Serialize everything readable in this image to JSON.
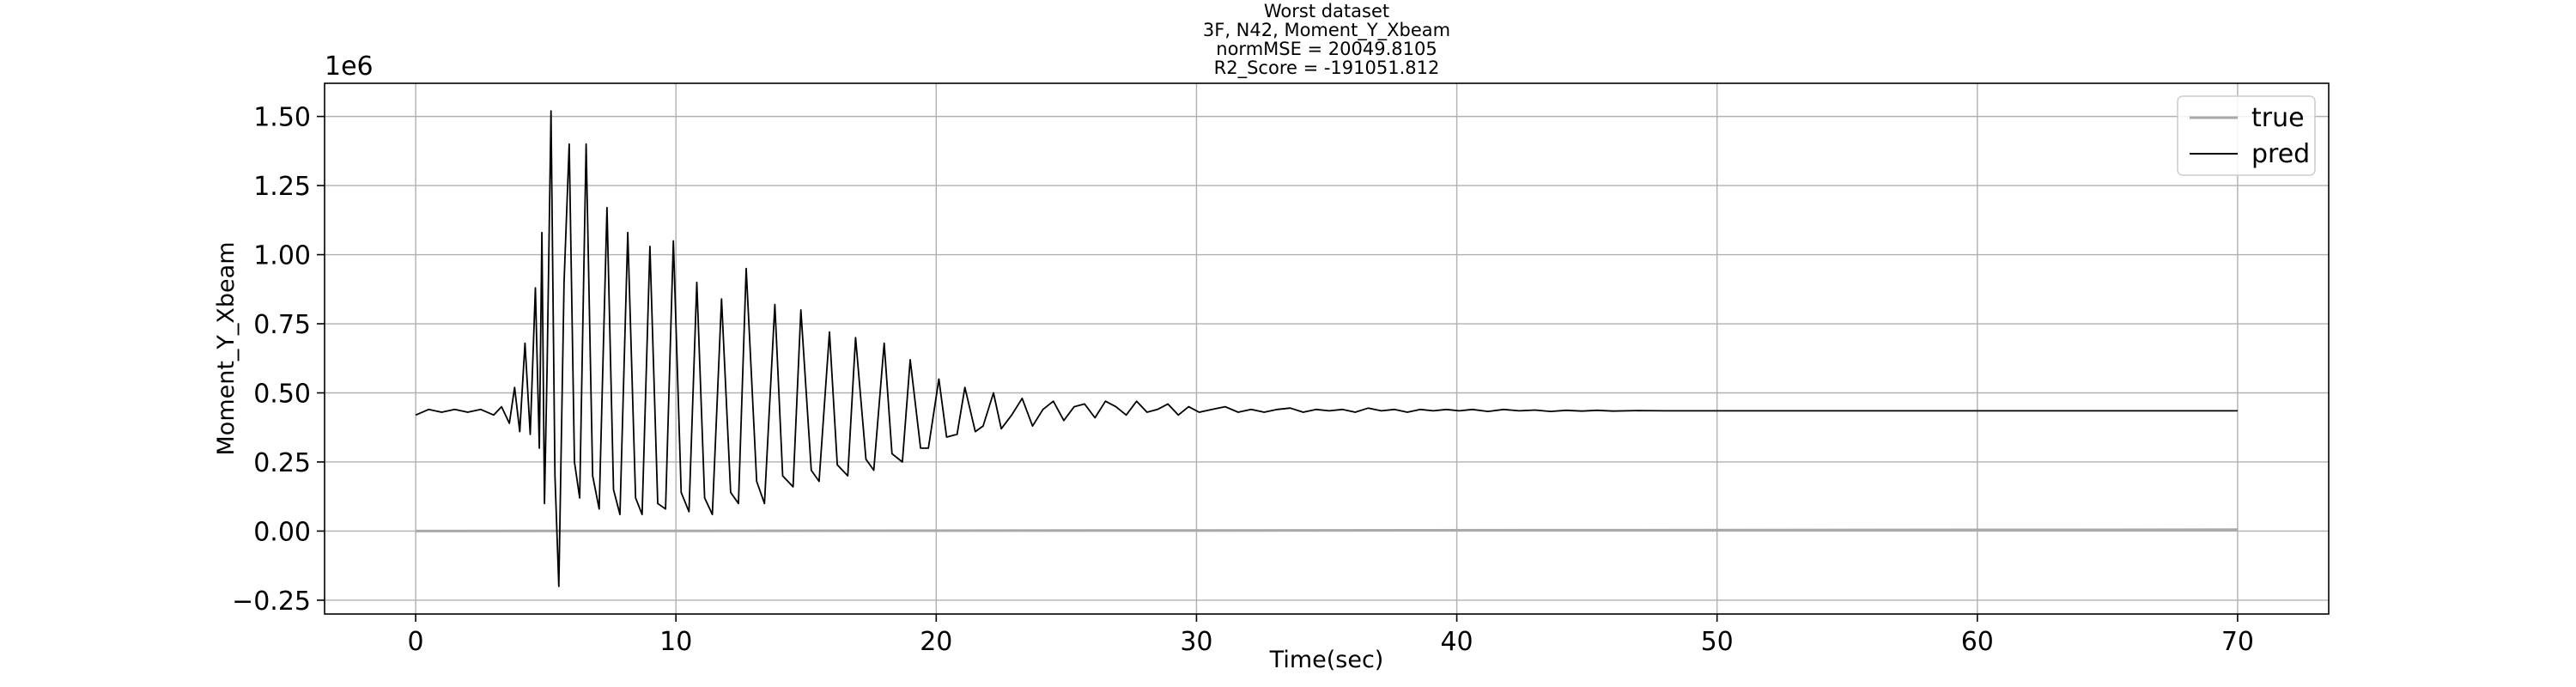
{
  "chart_data": {
    "type": "line",
    "title_lines": [
      "Worst dataset",
      "3F, N42, Moment_Y_Xbeam",
      "normMSE = 20049.8105",
      "R2_Score = -191051.812"
    ],
    "xlabel": "Time(sec)",
    "ylabel": "Moment_Y_Xbeam",
    "y_scale_label": "1e6",
    "xlim": [
      -3.5,
      73.5
    ],
    "ylim": [
      -0.3,
      1.62
    ],
    "x_ticks": [
      0,
      10,
      20,
      30,
      40,
      50,
      60,
      70
    ],
    "x_tick_labels": [
      "0",
      "10",
      "20",
      "30",
      "40",
      "50",
      "60",
      "70"
    ],
    "y_ticks": [
      -0.25,
      0.0,
      0.25,
      0.5,
      0.75,
      1.0,
      1.25,
      1.5
    ],
    "y_tick_labels": [
      "−0.25",
      "0.00",
      "0.25",
      "0.50",
      "0.75",
      "1.00",
      "1.25",
      "1.50"
    ],
    "grid": true,
    "legend_position": "top-right",
    "series": [
      {
        "name": "true",
        "color": "#a9a9a9",
        "x": [
          0,
          70
        ],
        "y": [
          0.0,
          0.005
        ]
      },
      {
        "name": "pred",
        "color": "#000000",
        "x": [
          0,
          0.5,
          1.0,
          1.5,
          2.0,
          2.5,
          3.0,
          3.3,
          3.6,
          3.8,
          4.0,
          4.2,
          4.4,
          4.6,
          4.75,
          4.85,
          4.95,
          5.05,
          5.2,
          5.35,
          5.5,
          5.7,
          5.9,
          6.1,
          6.3,
          6.55,
          6.8,
          7.05,
          7.35,
          7.6,
          7.85,
          8.15,
          8.45,
          8.7,
          9.0,
          9.3,
          9.6,
          9.9,
          10.2,
          10.5,
          10.8,
          11.1,
          11.4,
          11.75,
          12.1,
          12.4,
          12.7,
          13.1,
          13.4,
          13.8,
          14.1,
          14.5,
          14.8,
          15.2,
          15.5,
          15.9,
          16.2,
          16.6,
          16.9,
          17.3,
          17.6,
          18.0,
          18.3,
          18.7,
          19.0,
          19.4,
          19.7,
          20.1,
          20.4,
          20.8,
          21.1,
          21.5,
          21.8,
          22.2,
          22.5,
          22.9,
          23.3,
          23.7,
          24.1,
          24.5,
          24.9,
          25.3,
          25.7,
          26.1,
          26.5,
          26.9,
          27.3,
          27.7,
          28.1,
          28.5,
          28.9,
          29.3,
          29.7,
          30.1,
          30.6,
          31.1,
          31.6,
          32.1,
          32.6,
          33.1,
          33.6,
          34.1,
          34.6,
          35.1,
          35.6,
          36.1,
          36.6,
          37.1,
          37.6,
          38.1,
          38.6,
          39.1,
          39.6,
          40.1,
          40.6,
          41.2,
          41.8,
          42.4,
          43.0,
          43.6,
          44.2,
          44.8,
          45.4,
          46.0,
          47.0,
          48.0,
          50.0,
          55.0,
          60.0,
          65.0,
          70.0
        ],
        "y": [
          0.42,
          0.44,
          0.43,
          0.44,
          0.43,
          0.44,
          0.42,
          0.45,
          0.39,
          0.52,
          0.36,
          0.68,
          0.35,
          0.88,
          0.3,
          1.08,
          0.1,
          0.6,
          1.52,
          0.2,
          -0.2,
          0.9,
          1.4,
          0.25,
          0.12,
          1.4,
          0.2,
          0.08,
          1.17,
          0.15,
          0.06,
          1.08,
          0.12,
          0.06,
          1.03,
          0.1,
          0.08,
          1.05,
          0.14,
          0.07,
          0.9,
          0.12,
          0.06,
          0.84,
          0.14,
          0.1,
          0.95,
          0.18,
          0.1,
          0.82,
          0.2,
          0.16,
          0.8,
          0.22,
          0.18,
          0.72,
          0.24,
          0.2,
          0.7,
          0.26,
          0.22,
          0.68,
          0.28,
          0.25,
          0.62,
          0.3,
          0.3,
          0.55,
          0.34,
          0.35,
          0.52,
          0.36,
          0.38,
          0.5,
          0.37,
          0.42,
          0.48,
          0.38,
          0.44,
          0.47,
          0.4,
          0.45,
          0.46,
          0.41,
          0.47,
          0.45,
          0.42,
          0.47,
          0.43,
          0.44,
          0.46,
          0.42,
          0.45,
          0.43,
          0.44,
          0.45,
          0.43,
          0.44,
          0.43,
          0.44,
          0.445,
          0.43,
          0.44,
          0.435,
          0.44,
          0.43,
          0.445,
          0.435,
          0.44,
          0.43,
          0.44,
          0.435,
          0.44,
          0.435,
          0.44,
          0.433,
          0.44,
          0.435,
          0.438,
          0.433,
          0.437,
          0.434,
          0.437,
          0.434,
          0.436,
          0.435,
          0.435,
          0.435,
          0.435,
          0.435,
          0.435
        ]
      }
    ]
  }
}
